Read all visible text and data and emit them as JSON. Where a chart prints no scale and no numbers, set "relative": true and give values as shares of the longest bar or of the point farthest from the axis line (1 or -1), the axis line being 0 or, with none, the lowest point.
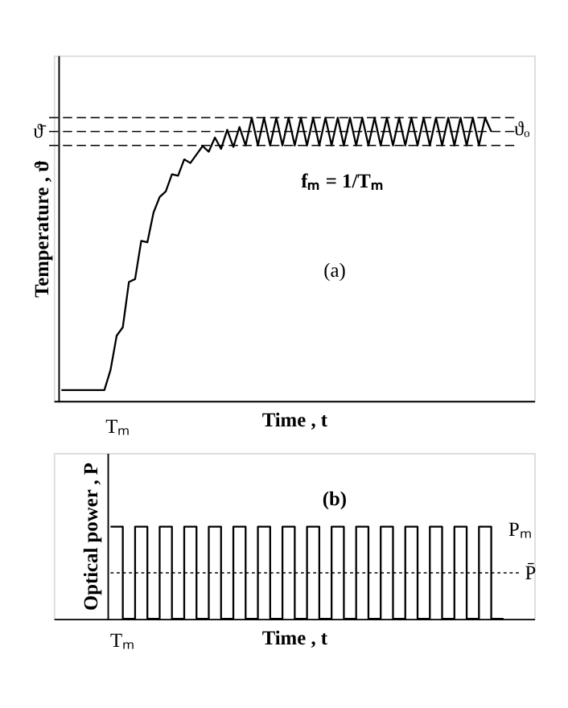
{
  "chart_data": [
    {
      "type": "line",
      "relative": true,
      "xlabel": "Time , t",
      "ylabel": "Temperature , ϑ",
      "categories": [
        null,
        null,
        null,
        null,
        null,
        null,
        null,
        null,
        null,
        null,
        null,
        null,
        null,
        null,
        null,
        null,
        null,
        null,
        null,
        null,
        null,
        null,
        null,
        null,
        null,
        null,
        null,
        null,
        null,
        null,
        null,
        null,
        null,
        null,
        null,
        null,
        null,
        null,
        null,
        null,
        null,
        null,
        null,
        null,
        null,
        null,
        null,
        null,
        null,
        null,
        null,
        null,
        null,
        null,
        null,
        null,
        null,
        null,
        null,
        null,
        null,
        null,
        null,
        null,
        null,
        null,
        null,
        null,
        null,
        null,
        null
      ],
      "series": [
        {
          "color": "#000000",
          "values": [
            0.038,
            0.038,
            0.038,
            0.038,
            0.038,
            0.038,
            0.038,
            0.038,
            0.109,
            0.23,
            0.26,
            0.42,
            0.43,
            0.565,
            0.56,
            0.665,
            0.72,
            0.74,
            0.8,
            0.795,
            0.853,
            0.84,
            0.87,
            0.9,
            0.88,
            0.93,
            0.89,
            0.957,
            0.897,
            0.967,
            0.902,
            1.0,
            0.902,
            1.0,
            0.902,
            1.0,
            0.902,
            1.0,
            0.902,
            1.0,
            0.902,
            1.0,
            0.902,
            1.0,
            0.902,
            1.0,
            0.902,
            1.0,
            0.902,
            1.0,
            0.902,
            1.0,
            0.902,
            1.0,
            0.902,
            1.0,
            0.902,
            1.0,
            0.902,
            1.0,
            0.902,
            1.0,
            0.902,
            1.0,
            0.902,
            1.0,
            0.902,
            1.0,
            0.902,
            1.0,
            0.951
          ]
        }
      ],
      "ref_lines": [
        {
          "axis": "y",
          "value": 1.0,
          "line_style": "dashed",
          "color": "#000000"
        },
        {
          "axis": "y",
          "value": 0.951,
          "label": "ϑ̄",
          "line_style": "dashed",
          "color": "#000000"
        },
        {
          "axis": "y",
          "value": 0.902,
          "line_style": "dashed",
          "color": "#000000"
        }
      ],
      "annotations": [
        "fₘ = 1/Tₘ",
        "(a)",
        "Tₘ",
        "ϑₒ"
      ],
      "line_style": "solid",
      "grid": false,
      "tick_labels": false
    },
    {
      "type": "step",
      "relative": true,
      "xlabel": "Time , t",
      "ylabel": "Optical power , P",
      "categories": [
        null,
        null,
        null,
        null,
        null,
        null,
        null,
        null,
        null,
        null,
        null,
        null,
        null,
        null,
        null,
        null,
        null,
        null,
        null,
        null,
        null,
        null,
        null,
        null,
        null,
        null,
        null,
        null,
        null,
        null,
        null,
        null,
        null
      ],
      "series": [
        {
          "color": "#000000",
          "values": [
            1,
            0,
            1,
            0,
            1,
            0,
            1,
            0,
            1,
            0,
            1,
            0,
            1,
            0,
            1,
            0,
            1,
            0,
            1,
            0,
            1,
            0,
            1,
            0,
            1,
            0,
            1,
            0,
            1,
            0,
            1,
            0,
            0
          ]
        }
      ],
      "ref_lines": [
        {
          "axis": "y",
          "value": 0.5,
          "label": "P̄",
          "line_style": "dotted",
          "color": "#000000"
        }
      ],
      "annotations": [
        "(b)",
        "Pₘ",
        "Tₘ"
      ],
      "line_style": "solid",
      "grid": false,
      "tick_labels": false
    }
  ]
}
